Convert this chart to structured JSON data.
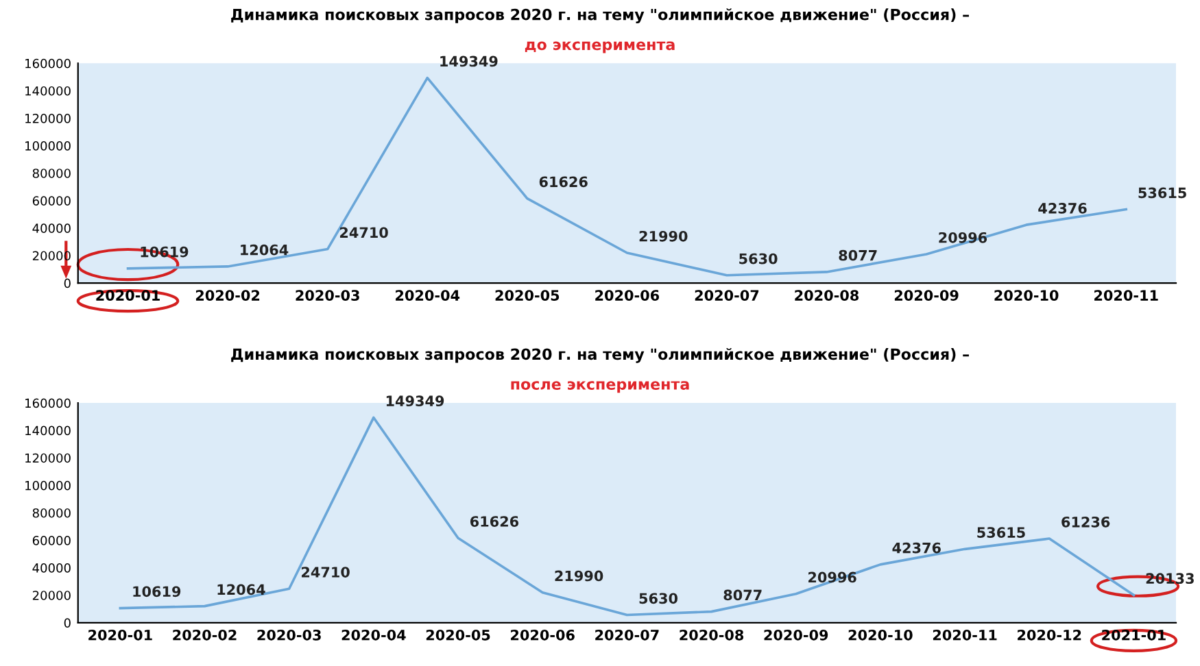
{
  "chart_data": [
    {
      "type": "line",
      "title": "Динамика поисковых запросов 2020 г. на тему \"олимпийское движение\" (Россия) –",
      "subtitle": "до эксперимента",
      "categories": [
        "2020-01",
        "2020-02",
        "2020-03",
        "2020-04",
        "2020-05",
        "2020-06",
        "2020-07",
        "2020-08",
        "2020-09",
        "2020-10",
        "2020-11"
      ],
      "series": [
        {
          "color": "#6aa6d8",
          "values": [
            10619,
            12064,
            24710,
            149349,
            61626,
            21990,
            5630,
            8077,
            20996,
            42376,
            53615
          ]
        }
      ],
      "ylim": [
        0,
        160000
      ],
      "yticks": [
        0,
        20000,
        40000,
        60000,
        80000,
        100000,
        120000,
        140000,
        160000
      ],
      "data_labels": true,
      "grid": false,
      "marker": "none",
      "line_style": "solid"
    },
    {
      "type": "line",
      "title": "Динамика поисковых запросов 2020 г. на тему \"олимпийское движение\" (Россия) –",
      "subtitle": "после эксперимента",
      "categories": [
        "2020-01",
        "2020-02",
        "2020-03",
        "2020-04",
        "2020-05",
        "2020-06",
        "2020-07",
        "2020-08",
        "2020-09",
        "2020-10",
        "2020-11",
        "2020-12",
        "2021-01"
      ],
      "series": [
        {
          "color": "#6aa6d8",
          "values": [
            10619,
            12064,
            24710,
            149349,
            61626,
            21990,
            5630,
            8077,
            20996,
            42376,
            53615,
            61236,
            20133
          ]
        }
      ],
      "ylim": [
        0,
        160000
      ],
      "yticks": [
        0,
        20000,
        40000,
        60000,
        80000,
        100000,
        120000,
        140000,
        160000
      ],
      "data_labels": true,
      "grid": false,
      "marker": "none",
      "line_style": "solid"
    }
  ]
}
